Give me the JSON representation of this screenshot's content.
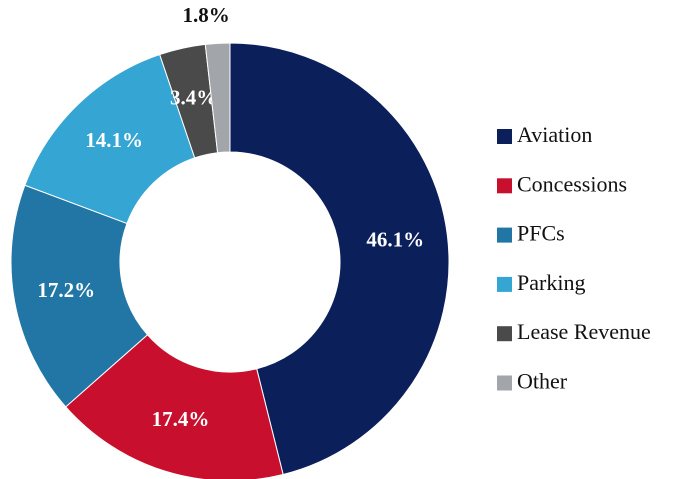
{
  "chart_data": {
    "type": "donut",
    "categories": [
      "Aviation",
      "Concessions",
      "PFCs",
      "Parking",
      "Lease Revenue",
      "Other"
    ],
    "values": [
      46.1,
      17.4,
      17.2,
      14.1,
      3.4,
      1.8
    ],
    "value_labels": [
      "46.1%",
      "17.4%",
      "17.2%",
      "14.1%",
      "3.4%",
      "1.8%"
    ],
    "colors": [
      "#0b1f5b",
      "#c8102e",
      "#2176a6",
      "#35a5d3",
      "#4a4a4a",
      "#a2a6aa"
    ],
    "legend": "right"
  }
}
